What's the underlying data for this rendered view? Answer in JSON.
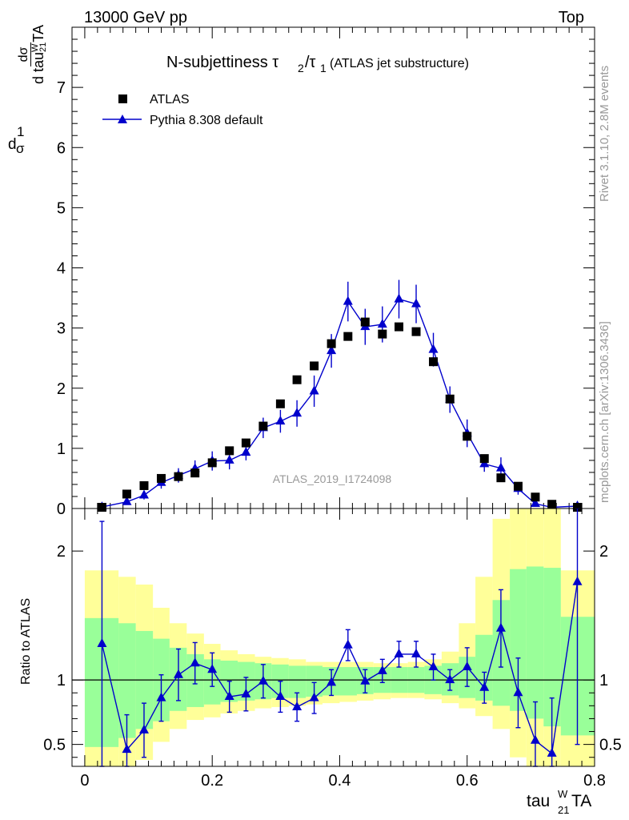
{
  "header": {
    "left": "13000 GeV pp",
    "right": "Top"
  },
  "side_labels": {
    "rivet": "Rivet 3.1.10,  2.8M events",
    "mcplots": "mcplots.cern.ch [arXiv:1306.3436]"
  },
  "watermark": "ATLAS_2019_I1724098",
  "chart_data": [
    {
      "type": "scatter",
      "title": "N-subjettiness τ2/τ1 (ATLAS jet substructure)",
      "title_main": "N-subjettiness τ",
      "title_sub2": "2",
      "title_slash": "/τ",
      "title_sub1": "1",
      "title_tail": "(ATLAS jet substructure)",
      "ylabel_prefix": "1",
      "ylabel_sigma": "σ",
      "ylabel_d": "d",
      "ylabel_frac_num": "dσ",
      "ylabel_frac_den": "d tau",
      "ylabel_sup": "W",
      "ylabel_sub": "21",
      "ylabel_tail": "TA",
      "xlim": [
        -0.02,
        0.8
      ],
      "ylim": [
        0,
        8
      ],
      "yticks": [
        0,
        1,
        2,
        3,
        4,
        5,
        6,
        7
      ],
      "xticks": [
        0,
        0.2,
        0.4,
        0.6,
        0.8
      ],
      "legend_placement": "top-left",
      "series": [
        {
          "name": "ATLAS",
          "marker": "square",
          "color": "#000000",
          "x": [
            0.027,
            0.066,
            0.093,
            0.12,
            0.147,
            0.173,
            0.2,
            0.227,
            0.253,
            0.28,
            0.307,
            0.333,
            0.36,
            0.387,
            0.413,
            0.44,
            0.467,
            0.493,
            0.52,
            0.547,
            0.573,
            0.6,
            0.627,
            0.653,
            0.68,
            0.707,
            0.733,
            0.773
          ],
          "values": [
            0.02,
            0.24,
            0.38,
            0.5,
            0.53,
            0.59,
            0.76,
            0.96,
            1.09,
            1.37,
            1.74,
            2.14,
            2.37,
            2.74,
            2.86,
            3.1,
            2.9,
            3.02,
            2.94,
            2.44,
            1.82,
            1.2,
            0.83,
            0.51,
            0.37,
            0.19,
            0.07,
            0.02
          ]
        },
        {
          "name": "Pythia 8.308 default",
          "marker": "triangle",
          "color": "#0000cc",
          "x": [
            0.027,
            0.066,
            0.093,
            0.12,
            0.147,
            0.173,
            0.2,
            0.227,
            0.253,
            0.28,
            0.307,
            0.333,
            0.36,
            0.387,
            0.413,
            0.44,
            0.467,
            0.493,
            0.52,
            0.547,
            0.573,
            0.6,
            0.627,
            0.653,
            0.68,
            0.707,
            0.733,
            0.773
          ],
          "values": [
            0.025,
            0.11,
            0.22,
            0.43,
            0.55,
            0.66,
            0.79,
            0.8,
            0.93,
            1.34,
            1.45,
            1.58,
            1.95,
            2.62,
            3.44,
            3.02,
            3.06,
            3.48,
            3.4,
            2.64,
            1.81,
            1.25,
            0.74,
            0.67,
            0.33,
            0.08,
            0.02,
            0.04
          ],
          "errors": [
            0.01,
            0.04,
            0.07,
            0.1,
            0.12,
            0.14,
            0.16,
            0.15,
            0.13,
            0.17,
            0.19,
            0.22,
            0.26,
            0.28,
            0.33,
            0.3,
            0.3,
            0.32,
            0.32,
            0.28,
            0.22,
            0.23,
            0.13,
            0.18,
            0.1,
            0.04,
            0.02,
            0.03
          ]
        }
      ]
    },
    {
      "type": "line",
      "ylabel": "Ratio to ATLAS",
      "xlabel_main": "tau",
      "xlabel_sup": "W",
      "xlabel_sub": "21",
      "xlabel_tail": "TA",
      "xlim": [
        -0.02,
        0.8
      ],
      "ylim": [
        0.33,
        2.33
      ],
      "yticks": [
        0.5,
        1,
        2
      ],
      "xticks": [
        0,
        0.2,
        0.4,
        0.6,
        0.8
      ],
      "reference": 1,
      "bands": {
        "edges": [
          0,
          0.053,
          0.08,
          0.107,
          0.133,
          0.16,
          0.187,
          0.213,
          0.24,
          0.267,
          0.293,
          0.32,
          0.347,
          0.373,
          0.4,
          0.427,
          0.453,
          0.48,
          0.507,
          0.533,
          0.56,
          0.587,
          0.613,
          0.64,
          0.667,
          0.693,
          0.72,
          0.747,
          0.8
        ],
        "inner_lo": [
          0.48,
          0.55,
          0.62,
          0.68,
          0.76,
          0.79,
          0.81,
          0.83,
          0.84,
          0.85,
          0.86,
          0.86,
          0.87,
          0.88,
          0.88,
          0.89,
          0.9,
          0.9,
          0.9,
          0.89,
          0.88,
          0.86,
          0.84,
          0.8,
          0.76,
          0.7,
          0.64,
          0.57
        ],
        "inner_hi": [
          1.48,
          1.44,
          1.38,
          1.32,
          1.25,
          1.2,
          1.16,
          1.15,
          1.14,
          1.13,
          1.12,
          1.11,
          1.11,
          1.1,
          1.1,
          1.1,
          1.1,
          1.1,
          1.1,
          1.11,
          1.13,
          1.18,
          1.35,
          1.62,
          1.86,
          1.88,
          1.87,
          1.49
        ],
        "outer_lo": [
          0.2,
          0.3,
          0.38,
          0.52,
          0.62,
          0.69,
          0.71,
          0.74,
          0.76,
          0.78,
          0.79,
          0.8,
          0.81,
          0.82,
          0.83,
          0.84,
          0.85,
          0.86,
          0.86,
          0.85,
          0.82,
          0.78,
          0.72,
          0.62,
          0.4,
          0.25,
          0.1,
          0.25
        ],
        "outer_hi": [
          1.85,
          1.8,
          1.74,
          1.56,
          1.44,
          1.36,
          1.28,
          1.23,
          1.2,
          1.18,
          1.17,
          1.16,
          1.14,
          1.14,
          1.14,
          1.14,
          1.13,
          1.13,
          1.14,
          1.16,
          1.22,
          1.44,
          1.8,
          2.25,
          2.55,
          2.6,
          2.6,
          1.85
        ]
      },
      "series": [
        {
          "name": "Pythia 8.308 default / ATLAS",
          "marker": "triangle",
          "color": "#0000cc",
          "x": [
            0.027,
            0.066,
            0.093,
            0.12,
            0.147,
            0.173,
            0.2,
            0.227,
            0.253,
            0.28,
            0.307,
            0.333,
            0.36,
            0.387,
            0.413,
            0.44,
            0.467,
            0.493,
            0.52,
            0.547,
            0.573,
            0.6,
            0.627,
            0.653,
            0.68,
            0.707,
            0.733,
            0.773
          ],
          "values": [
            1.28,
            0.46,
            0.61,
            0.86,
            1.04,
            1.13,
            1.08,
            0.87,
            0.89,
            0.99,
            0.87,
            0.79,
            0.86,
            0.98,
            1.27,
            0.99,
            1.07,
            1.2,
            1.2,
            1.1,
            1.0,
            1.1,
            0.94,
            1.4,
            0.9,
            0.53,
            0.43,
            1.76
          ],
          "err_lo": [
            0.95,
            0.27,
            0.21,
            0.18,
            0.2,
            0.16,
            0.13,
            0.12,
            0.13,
            0.13,
            0.12,
            0.11,
            0.12,
            0.1,
            0.12,
            0.09,
            0.09,
            0.1,
            0.1,
            0.1,
            0.08,
            0.15,
            0.12,
            0.3,
            0.27,
            0.3,
            0.43,
            1.26
          ],
          "err_hi": [
            0.95,
            0.27,
            0.21,
            0.18,
            0.2,
            0.16,
            0.13,
            0.12,
            0.13,
            0.13,
            0.12,
            0.11,
            0.12,
            0.1,
            0.12,
            0.09,
            0.09,
            0.1,
            0.1,
            0.1,
            0.08,
            0.15,
            0.12,
            0.3,
            0.27,
            0.3,
            0.43,
            1.26
          ]
        }
      ]
    }
  ]
}
